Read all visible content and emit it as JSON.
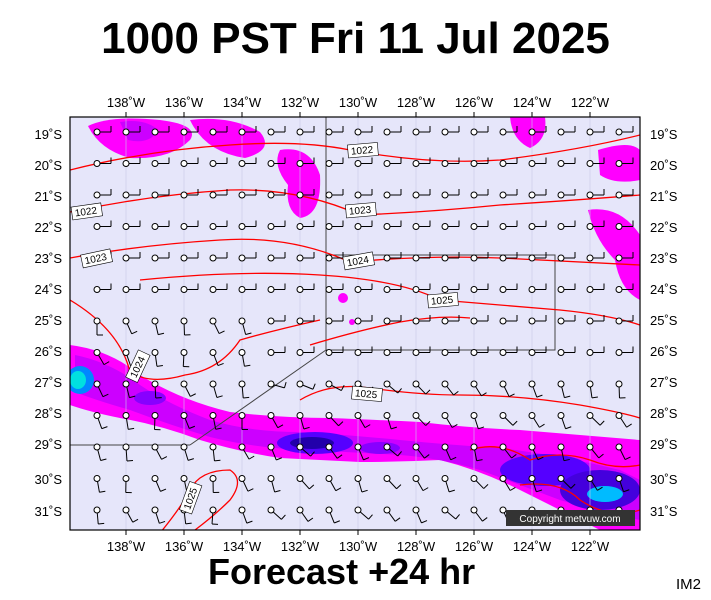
{
  "title": "1000 PST Fri 11 Jul 2025",
  "footer": "Forecast +24 hr",
  "image_code": "IM2",
  "copyright": "Copyright metvuw.com",
  "colors": {
    "background": "#e6e6fa",
    "isobar": "#ff0000",
    "rain_light": "#ff00ff",
    "rain_mid": "#cc00ff",
    "rain_heavy": "#4400dd",
    "rain_extreme": "#00e0e0"
  },
  "map": {
    "lon_labels": [
      "138˚W",
      "136˚W",
      "134˚W",
      "132˚W",
      "130˚W",
      "128˚W",
      "126˚W",
      "124˚W",
      "122˚W"
    ],
    "lat_labels": [
      "19˚S",
      "20˚S",
      "21˚S",
      "22˚S",
      "23˚S",
      "24˚S",
      "25˚S",
      "26˚S",
      "27˚S",
      "28˚S",
      "29˚S",
      "30˚S",
      "31˚S"
    ],
    "isobar_labels": [
      "1022",
      "1022",
      "1023",
      "1023",
      "1024",
      "1024",
      "1025",
      "1025",
      "1025"
    ]
  }
}
